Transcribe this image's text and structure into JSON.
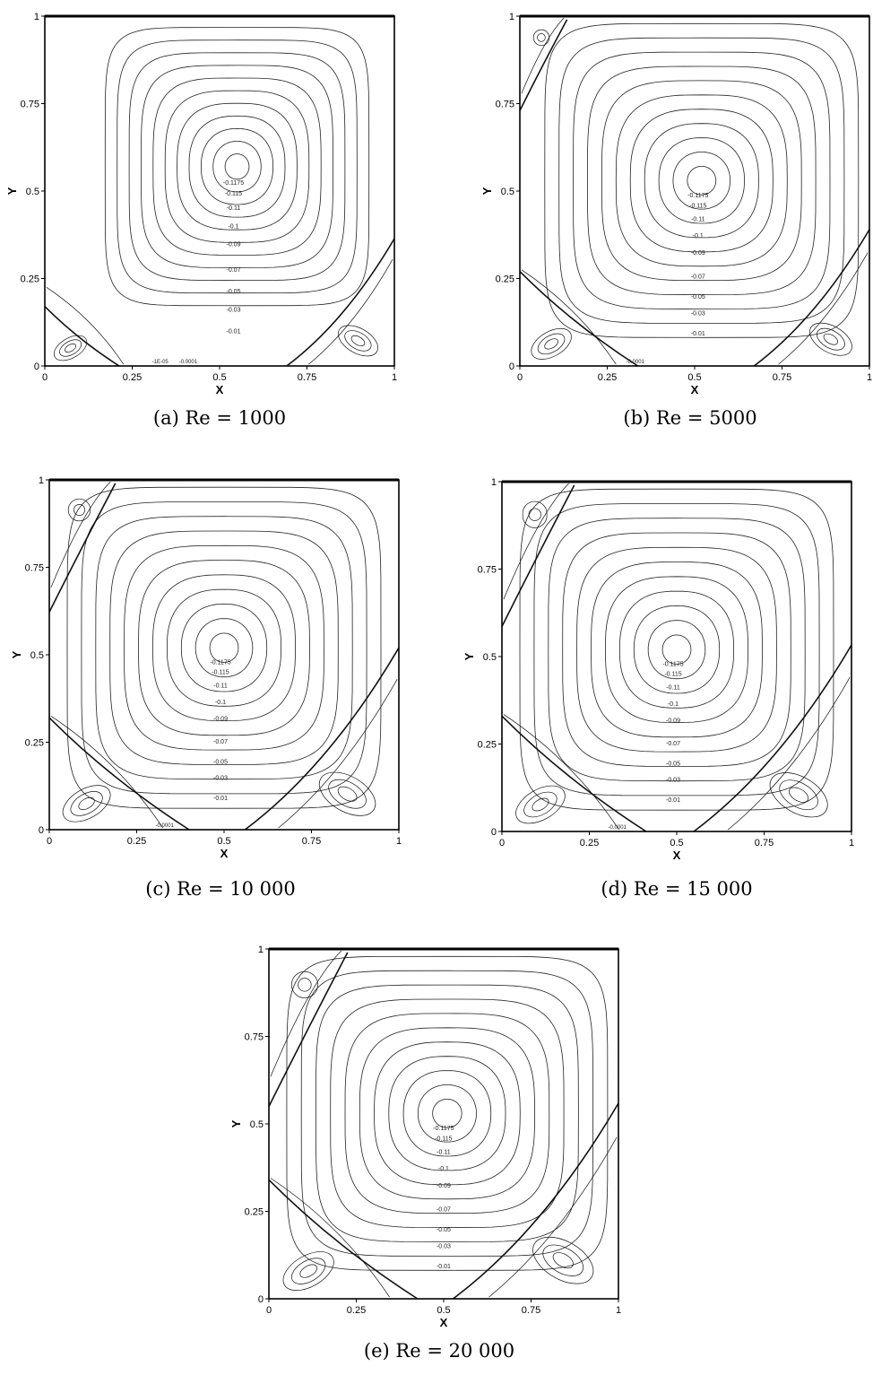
{
  "figure": {
    "axis_ticks": [
      "0",
      "0.25",
      "0.5",
      "0.75",
      "1"
    ],
    "x_axis_label": "X",
    "y_axis_label": "Y",
    "panels": [
      {
        "caption": "(a)  Re = 1000",
        "contour_labels": [
          "-0.1175",
          "-0.115",
          "-0.11",
          "-0.1",
          "-0.09",
          "-0.07",
          "-0.05",
          "-0.03",
          "-0.01"
        ],
        "corner_labels": [
          "-1E-05",
          "-0.0001"
        ]
      },
      {
        "caption": "(b)  Re = 5000",
        "contour_labels": [
          "-0.1175",
          "-0.115",
          "-0.11",
          "-0.1",
          "-0.09",
          "-0.07",
          "-0.05",
          "-0.03",
          "-0.01"
        ],
        "corner_labels": [
          "-0.0001"
        ]
      },
      {
        "caption": "(c)  Re = 10 000",
        "contour_labels": [
          "-0.1175",
          "-0.115",
          "-0.11",
          "-0.1",
          "-0.09",
          "-0.07",
          "-0.05",
          "-0.03",
          "-0.01"
        ],
        "corner_labels": [
          "-0.0001"
        ]
      },
      {
        "caption": "(d)  Re = 15 000",
        "contour_labels": [
          "-0.1175",
          "-0.115",
          "-0.11",
          "-0.1",
          "-0.09",
          "-0.07",
          "-0.05",
          "-0.03",
          "-0.01"
        ],
        "corner_labels": [
          "-0.0001"
        ]
      },
      {
        "caption": "(e)  Re = 20 000",
        "contour_labels": [
          "-0.1175",
          "-0.115",
          "-0.11",
          "-0.1",
          "-0.09",
          "-0.07",
          "-0.05",
          "-0.03",
          "-0.01"
        ],
        "corner_labels": []
      }
    ]
  }
}
